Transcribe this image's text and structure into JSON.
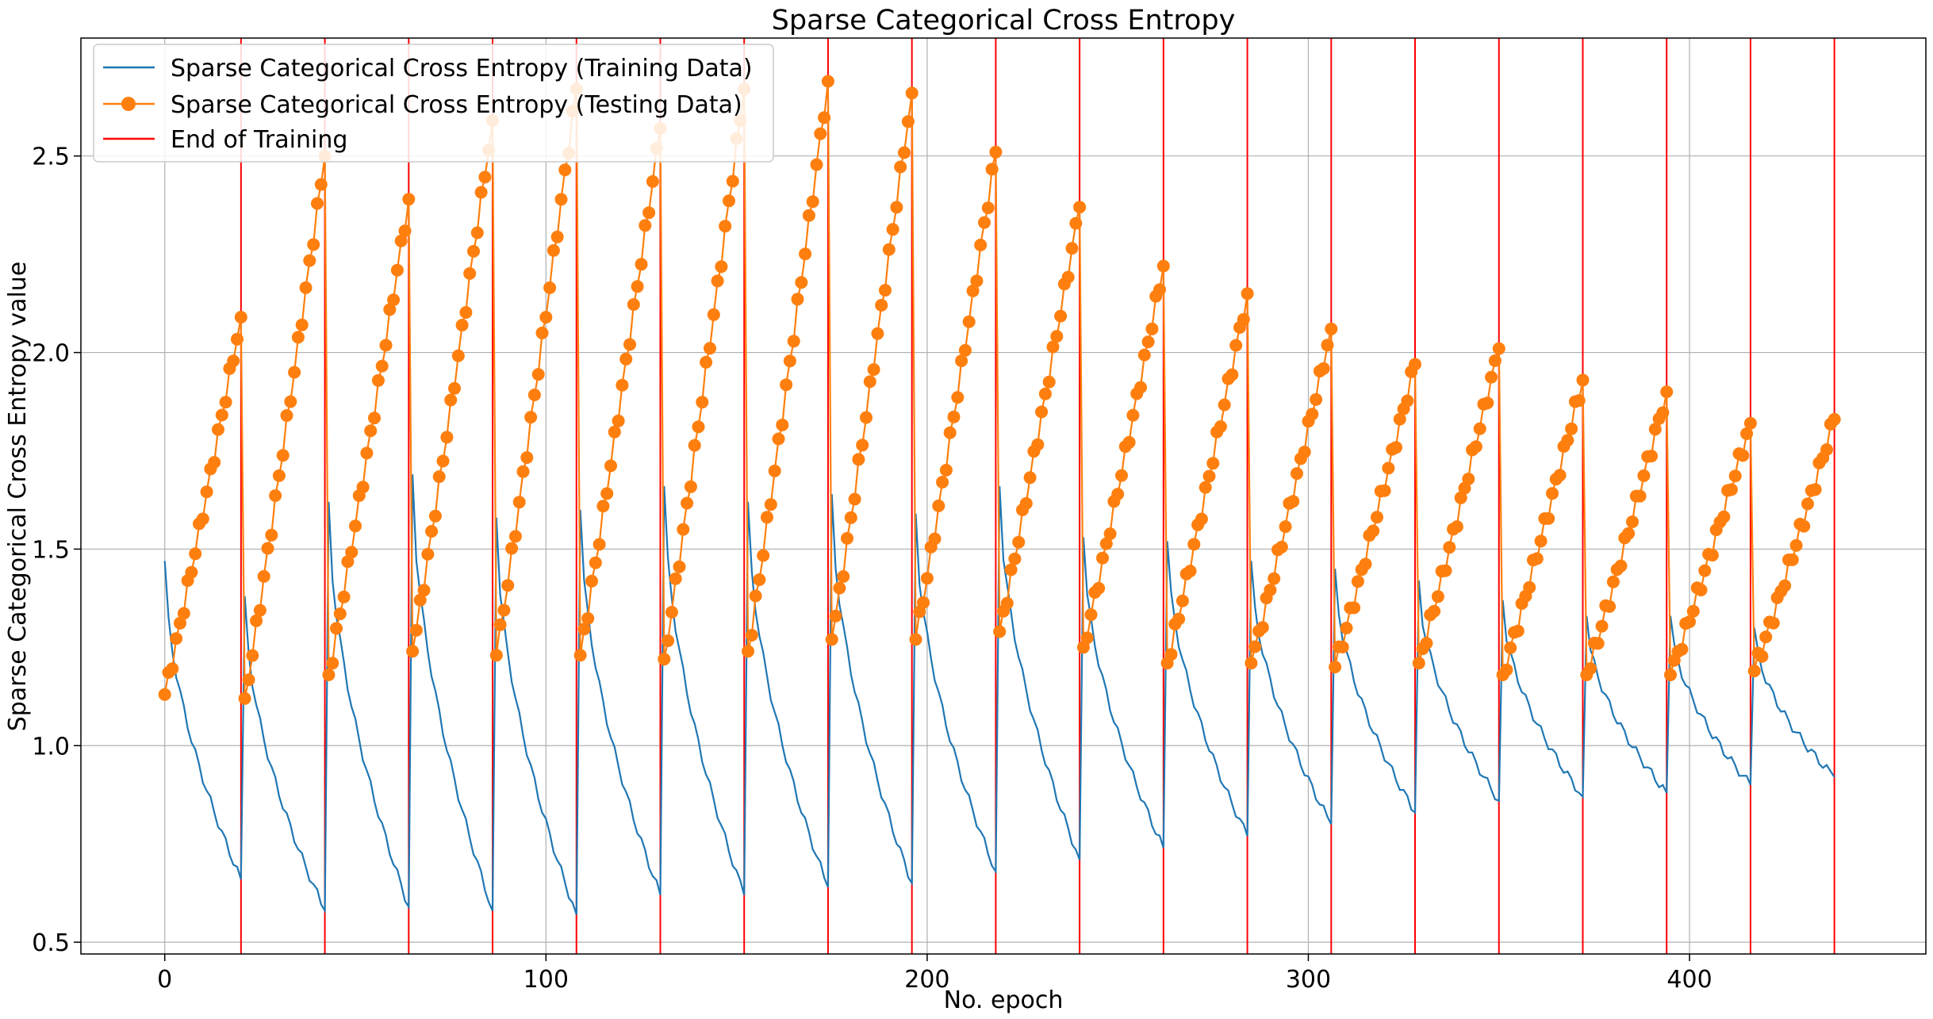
{
  "chart_data": {
    "type": "line",
    "title": "Sparse Categorical Cross Entropy",
    "xlabel": "No. epoch",
    "ylabel": "Sparse Categorical Cross Entropy value",
    "xlim": [
      -22,
      462
    ],
    "ylim": [
      0.47,
      2.8
    ],
    "xticks": [
      0,
      100,
      200,
      300,
      400
    ],
    "yticks": [
      0.5,
      1.0,
      1.5,
      2.0,
      2.5
    ],
    "grid": true,
    "legend_position": "top-left",
    "legend": {
      "training": "Sparse Categorical Cross Entropy (Training Data)",
      "testing": "Sparse Categorical Cross Entropy (Testing Data)",
      "end": "End of Training"
    },
    "colors": {
      "training": "#1f77b4",
      "testing": "#ff7f0e",
      "end": "#ff0000",
      "grid": "#b0b0b0"
    },
    "cycle_length": 22,
    "end_of_training_epochs": [
      20,
      42,
      64,
      86,
      108,
      130,
      152,
      174,
      196,
      218,
      240,
      262,
      284,
      306,
      328,
      350,
      372,
      394,
      416,
      438
    ],
    "training_cycles": [
      {
        "start_epoch": 0,
        "peak": 1.47,
        "end_epoch": 20,
        "end_value": 0.66
      },
      {
        "start_epoch": 21,
        "peak": 1.38,
        "end_epoch": 42,
        "end_value": 0.58
      },
      {
        "start_epoch": 43,
        "peak": 1.62,
        "end_epoch": 64,
        "end_value": 0.59
      },
      {
        "start_epoch": 65,
        "peak": 1.69,
        "end_epoch": 86,
        "end_value": 0.58
      },
      {
        "start_epoch": 87,
        "peak": 1.58,
        "end_epoch": 108,
        "end_value": 0.57
      },
      {
        "start_epoch": 109,
        "peak": 1.6,
        "end_epoch": 130,
        "end_value": 0.62
      },
      {
        "start_epoch": 131,
        "peak": 1.66,
        "end_epoch": 152,
        "end_value": 0.62
      },
      {
        "start_epoch": 153,
        "peak": 1.62,
        "end_epoch": 174,
        "end_value": 0.64
      },
      {
        "start_epoch": 175,
        "peak": 1.64,
        "end_epoch": 196,
        "end_value": 0.65
      },
      {
        "start_epoch": 197,
        "peak": 1.59,
        "end_epoch": 218,
        "end_value": 0.68
      },
      {
        "start_epoch": 219,
        "peak": 1.66,
        "end_epoch": 240,
        "end_value": 0.71
      },
      {
        "start_epoch": 241,
        "peak": 1.53,
        "end_epoch": 262,
        "end_value": 0.74
      },
      {
        "start_epoch": 263,
        "peak": 1.52,
        "end_epoch": 284,
        "end_value": 0.77
      },
      {
        "start_epoch": 285,
        "peak": 1.47,
        "end_epoch": 306,
        "end_value": 0.8
      },
      {
        "start_epoch": 307,
        "peak": 1.45,
        "end_epoch": 328,
        "end_value": 0.83
      },
      {
        "start_epoch": 329,
        "peak": 1.42,
        "end_epoch": 350,
        "end_value": 0.86
      },
      {
        "start_epoch": 351,
        "peak": 1.37,
        "end_epoch": 372,
        "end_value": 0.87
      },
      {
        "start_epoch": 373,
        "peak": 1.33,
        "end_epoch": 394,
        "end_value": 0.88
      },
      {
        "start_epoch": 395,
        "peak": 1.33,
        "end_epoch": 416,
        "end_value": 0.9
      },
      {
        "start_epoch": 417,
        "peak": 1.3,
        "end_epoch": 438,
        "end_value": 0.92
      }
    ],
    "testing_cycles": [
      {
        "start_epoch": 0,
        "min": 1.13,
        "end_epoch": 20,
        "peak": 2.09
      },
      {
        "start_epoch": 21,
        "min": 1.12,
        "end_epoch": 42,
        "peak": 2.5
      },
      {
        "start_epoch": 43,
        "min": 1.18,
        "end_epoch": 64,
        "peak": 2.39
      },
      {
        "start_epoch": 65,
        "min": 1.24,
        "end_epoch": 86,
        "peak": 2.59
      },
      {
        "start_epoch": 87,
        "min": 1.23,
        "end_epoch": 108,
        "peak": 2.67
      },
      {
        "start_epoch": 109,
        "min": 1.23,
        "end_epoch": 130,
        "peak": 2.57
      },
      {
        "start_epoch": 131,
        "min": 1.22,
        "end_epoch": 152,
        "peak": 2.67
      },
      {
        "start_epoch": 153,
        "min": 1.24,
        "end_epoch": 174,
        "peak": 2.69
      },
      {
        "start_epoch": 175,
        "min": 1.27,
        "end_epoch": 196,
        "peak": 2.66
      },
      {
        "start_epoch": 197,
        "min": 1.27,
        "end_epoch": 218,
        "peak": 2.51
      },
      {
        "start_epoch": 219,
        "min": 1.29,
        "end_epoch": 240,
        "peak": 2.37
      },
      {
        "start_epoch": 241,
        "min": 1.25,
        "end_epoch": 262,
        "peak": 2.22
      },
      {
        "start_epoch": 263,
        "min": 1.21,
        "end_epoch": 284,
        "peak": 2.15
      },
      {
        "start_epoch": 285,
        "min": 1.21,
        "end_epoch": 306,
        "peak": 2.06
      },
      {
        "start_epoch": 307,
        "min": 1.2,
        "end_epoch": 328,
        "peak": 1.97
      },
      {
        "start_epoch": 329,
        "min": 1.21,
        "end_epoch": 350,
        "peak": 2.01
      },
      {
        "start_epoch": 351,
        "min": 1.18,
        "end_epoch": 372,
        "peak": 1.93
      },
      {
        "start_epoch": 373,
        "min": 1.18,
        "end_epoch": 394,
        "peak": 1.9
      },
      {
        "start_epoch": 395,
        "min": 1.18,
        "end_epoch": 416,
        "peak": 1.82
      },
      {
        "start_epoch": 417,
        "min": 1.19,
        "end_epoch": 438,
        "peak": 1.83
      }
    ]
  }
}
